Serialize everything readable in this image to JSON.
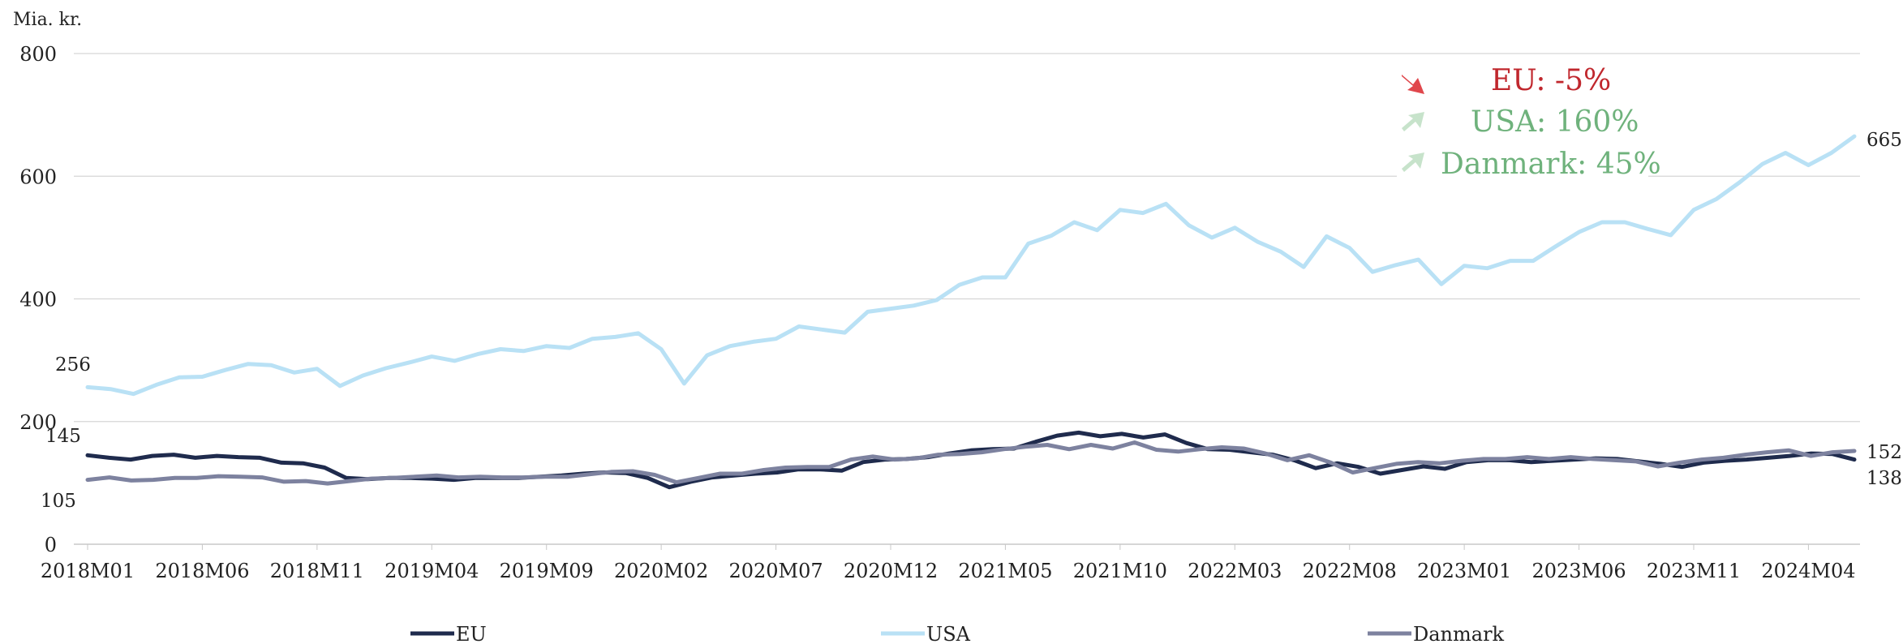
{
  "chart_data": {
    "type": "line",
    "ylabel": "Mia. kr.",
    "ylim": [
      0,
      800
    ],
    "yticks": [
      0,
      200,
      400,
      600,
      800
    ],
    "x_tick_labels": [
      "2018M01",
      "2018M06",
      "2018M11",
      "2019M04",
      "2019M09",
      "2020M02",
      "2020M07",
      "2020M12",
      "2021M05",
      "2021M10",
      "2022M03",
      "2022M08",
      "2023M01",
      "2023M06",
      "2023M11",
      "2024M04"
    ],
    "grid": true,
    "legend_position": "bottom",
    "colors": {
      "EU": "#1f2b4d",
      "USA": "#b9e1f5",
      "Danmark": "#7d829f",
      "down": "#e0474c",
      "up": "#c7e3cb",
      "down_text": "#c0272d",
      "up_text": "#6fb27c"
    },
    "series": [
      {
        "name": "EU",
        "values": [
          145,
          141,
          138,
          144,
          146,
          141,
          144,
          142,
          141,
          133,
          132,
          125,
          108,
          106,
          108,
          108,
          107,
          105,
          108,
          108,
          108,
          110,
          112,
          115,
          117,
          116,
          108,
          93,
          102,
          109,
          112,
          115,
          117,
          122,
          122,
          120,
          134,
          138,
          139,
          142,
          148,
          153,
          155,
          156,
          167,
          177,
          182,
          176,
          180,
          174,
          179,
          165,
          155,
          154,
          150,
          146,
          137,
          124,
          132,
          126,
          115,
          121,
          127,
          123,
          134,
          137,
          137,
          134,
          136,
          138,
          140,
          139,
          135,
          131,
          126,
          133,
          136,
          138,
          141,
          144,
          148,
          147,
          138
        ]
      },
      {
        "name": "USA",
        "values": [
          256,
          253,
          245,
          260,
          272,
          273,
          284,
          294,
          292,
          280,
          286,
          258,
          275,
          287,
          296,
          306,
          299,
          310,
          318,
          315,
          323,
          320,
          335,
          338,
          344,
          318,
          262,
          308,
          323,
          330,
          335,
          355,
          350,
          345,
          379,
          384,
          389,
          398,
          423,
          435,
          435,
          490,
          503,
          525,
          512,
          545,
          540,
          555,
          520,
          500,
          516,
          493,
          477,
          452,
          502,
          483,
          444,
          455,
          464,
          424,
          454,
          450,
          462,
          462,
          486,
          509,
          525,
          525,
          514,
          504,
          545,
          563,
          590,
          620,
          638,
          618,
          638,
          665
        ]
      },
      {
        "name": "Danmark",
        "values": [
          105,
          109,
          104,
          105,
          108,
          108,
          111,
          110,
          109,
          102,
          103,
          99,
          103,
          107,
          108,
          110,
          112,
          109,
          110,
          109,
          109,
          110,
          110,
          114,
          118,
          119,
          113,
          101,
          108,
          115,
          115,
          121,
          125,
          126,
          126,
          138,
          143,
          138,
          140,
          146,
          147,
          150,
          155,
          159,
          162,
          155,
          162,
          156,
          166,
          154,
          151,
          155,
          158,
          156,
          148,
          137,
          145,
          133,
          117,
          124,
          131,
          134,
          132,
          136,
          139,
          139,
          142,
          139,
          142,
          139,
          137,
          135,
          127,
          133,
          138,
          141,
          146,
          150,
          153,
          144,
          150,
          152
        ]
      }
    ],
    "end_labels": {
      "USA_first": "256",
      "EU_first": "145",
      "Danmark_first": "105",
      "USA_last": "665",
      "Danmark_last": "152",
      "EU_last": "138"
    },
    "annotations": [
      {
        "label": "EU: -5%",
        "direction": "down"
      },
      {
        "label": "USA: 160%",
        "direction": "up"
      },
      {
        "label": "Danmark: 45%",
        "direction": "up"
      }
    ]
  }
}
